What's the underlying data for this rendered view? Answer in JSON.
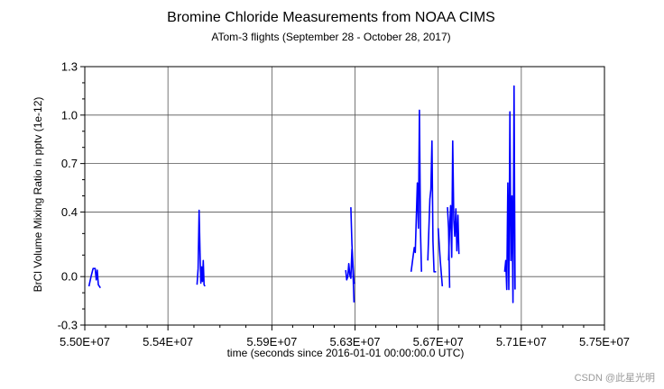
{
  "chart_data": {
    "type": "line",
    "title": "Bromine Chloride Measurements from NOAA CIMS",
    "subtitle": "ATom-3 flights (September 28 - October 28, 2017)",
    "xlabel": "time (seconds since 2016-01-01 00:00:00.0 UTC)",
    "ylabel": "BrCl Volume Mixing Ratio in pptv (1e-12)",
    "xlim": [
      55000000,
      57500000
    ],
    "ylim": [
      -0.3,
      1.3
    ],
    "grid": true,
    "legend": "none",
    "line_color": "#0000ff",
    "x_ticks": [
      55000000,
      55400000,
      55900000,
      56300000,
      56700000,
      57100000,
      57500000
    ],
    "x_tick_labels": [
      "5.50E+07",
      "5.54E+07",
      "5.59E+07",
      "5.63E+07",
      "5.67E+07",
      "5.71E+07",
      "5.75E+07"
    ],
    "y_ticks": [
      -0.3,
      0.0,
      0.4,
      0.7,
      1.0,
      1.3
    ],
    "y_tick_labels": [
      "-0.3",
      "0.0",
      "0.4",
      "0.7",
      "1.0",
      "1.3"
    ],
    "series": [
      {
        "segments": [
          [
            [
              55020000,
              -0.06
            ],
            [
              55030000,
              0.0
            ],
            [
              55040000,
              0.05
            ],
            [
              55050000,
              0.05
            ],
            [
              55055000,
              -0.02
            ],
            [
              55060000,
              0.04
            ],
            [
              55065000,
              -0.05
            ],
            [
              55075000,
              -0.07
            ]
          ],
          [
            [
              55540000,
              -0.05
            ],
            [
              55545000,
              0.05
            ],
            [
              55550000,
              0.41
            ],
            [
              55555000,
              0.1
            ],
            [
              55558000,
              -0.04
            ],
            [
              55562000,
              0.06
            ],
            [
              55566000,
              -0.03
            ],
            [
              55570000,
              0.1
            ],
            [
              55574000,
              -0.05
            ],
            [
              55578000,
              -0.06
            ]
          ],
          [
            [
              56280000,
              0.43
            ],
            [
              56285000,
              0.2
            ],
            [
              56290000,
              0.08
            ],
            [
              56295000,
              -0.04
            ],
            [
              56300000,
              -0.04
            ]
          ],
          [
            [
              56570000,
              0.03
            ],
            [
              56580000,
              0.13
            ],
            [
              56585000,
              0.18
            ],
            [
              56590000,
              0.15
            ],
            [
              56600000,
              0.58
            ],
            [
              56605000,
              0.3
            ],
            [
              56610000,
              1.03
            ],
            [
              56615000,
              0.28
            ],
            [
              56620000,
              0.03
            ]
          ],
          [
            [
              56750000,
              0.1
            ],
            [
              56755000,
              0.3
            ],
            [
              56760000,
              0.44
            ],
            [
              56765000,
              0.12
            ],
            [
              56770000,
              0.84
            ],
            [
              56775000,
              0.35
            ],
            [
              56780000,
              0.25
            ],
            [
              56785000,
              0.42
            ],
            [
              56790000,
              0.16
            ],
            [
              56795000,
              0.38
            ],
            [
              56800000,
              0.14
            ]
          ],
          [
            [
              57020000,
              0.03
            ],
            [
              57025000,
              0.1
            ],
            [
              57030000,
              -0.08
            ],
            [
              57035000,
              0.58
            ],
            [
              57040000,
              -0.08
            ],
            [
              57045000,
              1.02
            ],
            [
              57050000,
              0.1
            ],
            [
              57055000,
              0.5
            ],
            [
              57060000,
              -0.16
            ],
            [
              57065000,
              1.18
            ],
            [
              57070000,
              -0.08
            ]
          ],
          [
            [
              56255000,
              0.04
            ],
            [
              56260000,
              -0.02
            ],
            [
              56265000,
              0.0
            ],
            [
              56270000,
              0.08
            ],
            [
              56275000,
              0.01
            ],
            [
              56280000,
              -0.01
            ],
            [
              56285000,
              0.17
            ],
            [
              56290000,
              0.04
            ],
            [
              56295000,
              -0.16
            ]
          ],
          [
            [
              56650000,
              0.1
            ],
            [
              56660000,
              0.48
            ],
            [
              56665000,
              0.54
            ],
            [
              56670000,
              0.84
            ],
            [
              56675000,
              0.22
            ],
            [
              56680000,
              0.03
            ],
            [
              56690000,
              0.03
            ]
          ],
          [
            [
              56700000,
              0.3
            ],
            [
              56710000,
              0.1
            ],
            [
              56720000,
              -0.06
            ]
          ],
          [
            [
              56745000,
              0.43
            ],
            [
              56750000,
              0.3
            ],
            [
              56755000,
              -0.07
            ]
          ]
        ]
      }
    ]
  },
  "watermark": "CSDN @此星光明"
}
